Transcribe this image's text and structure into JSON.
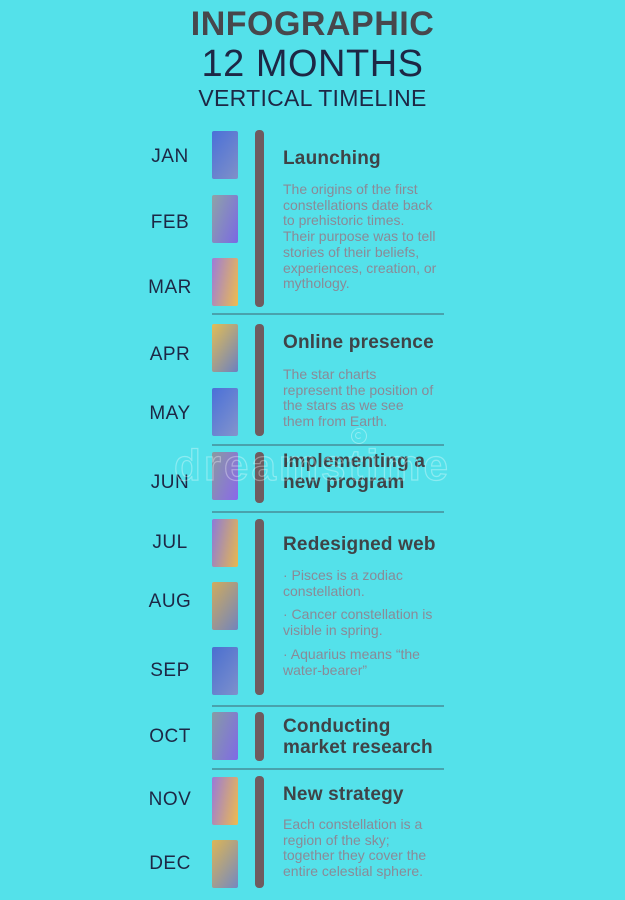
{
  "header": {
    "title": "INFOGRAPHIC",
    "subtitle": "12 MONTHS",
    "tagline": "VERTICAL TIMELINE"
  },
  "colors": {
    "background": "#54e1ea",
    "title_gray": "#47474c",
    "navy": "#1d2745",
    "heading": "#3f4347",
    "body_text": "#8a8a97",
    "spine": "#6f5b5f",
    "divider": "#3f6f7a"
  },
  "months": [
    {
      "label": "JAN",
      "gradient_from": "#4a70d8",
      "gradient_to": "#8090c8",
      "angle": "125deg"
    },
    {
      "label": "FEB",
      "gradient_from": "#8fa3a6",
      "gradient_to": "#7a68e4",
      "angle": "110deg"
    },
    {
      "label": "MAR",
      "gradient_from": "#9d7cd8",
      "gradient_to": "#eebc4e",
      "angle": "100deg"
    },
    {
      "label": "APR",
      "gradient_from": "#e2bd55",
      "gradient_to": "#6c80c0",
      "angle": "125deg"
    },
    {
      "label": "MAY",
      "gradient_from": "#4a70d8",
      "gradient_to": "#8494cc",
      "angle": "125deg"
    },
    {
      "label": "JUN",
      "gradient_from": "#8a9aa0",
      "gradient_to": "#8a68ea",
      "angle": "110deg"
    },
    {
      "label": "JUL",
      "gradient_from": "#8d7ad8",
      "gradient_to": "#e8b84e",
      "angle": "100deg"
    },
    {
      "label": "AUG",
      "gradient_from": "#cfab5e",
      "gradient_to": "#7284bc",
      "angle": "125deg"
    },
    {
      "label": "SEP",
      "gradient_from": "#4a6fd0",
      "gradient_to": "#7e90cc",
      "angle": "125deg"
    },
    {
      "label": "OCT",
      "gradient_from": "#879ba4",
      "gradient_to": "#7f6ae6",
      "angle": "110deg"
    },
    {
      "label": "NOV",
      "gradient_from": "#9a7ad8",
      "gradient_to": "#eebb4e",
      "angle": "100deg"
    },
    {
      "label": "DEC",
      "gradient_from": "#dcb556",
      "gradient_to": "#7488c0",
      "angle": "125deg"
    }
  ],
  "sections": [
    {
      "title": "Launching",
      "body": "The origins of the first\nconstellations date back\nto prehistoric times.\nTheir purpose was to tell\nstories of their beliefs,\nexperiences, creation, or\nmythology."
    },
    {
      "title": "Online presence",
      "body": "The star charts\nrepresent the position of\nthe stars as we see\nthem from Earth."
    },
    {
      "title": "Implementing a\nnew program",
      "body": ""
    },
    {
      "title": "Redesigned web",
      "bullets": [
        "· Pisces is a zodiac\nconstellation.",
        "· Cancer constellation is\nvisible in spring.",
        "· Aquarius means “the\nwater-bearer”"
      ]
    },
    {
      "title": "Conducting\nmarket research",
      "body": ""
    },
    {
      "title": "New strategy",
      "body": "Each constellation is a\nregion of the sky;\ntogether they cover the\nentire celestial sphere."
    }
  ],
  "watermark": {
    "text": "dreamstime",
    "symbol": "®"
  }
}
